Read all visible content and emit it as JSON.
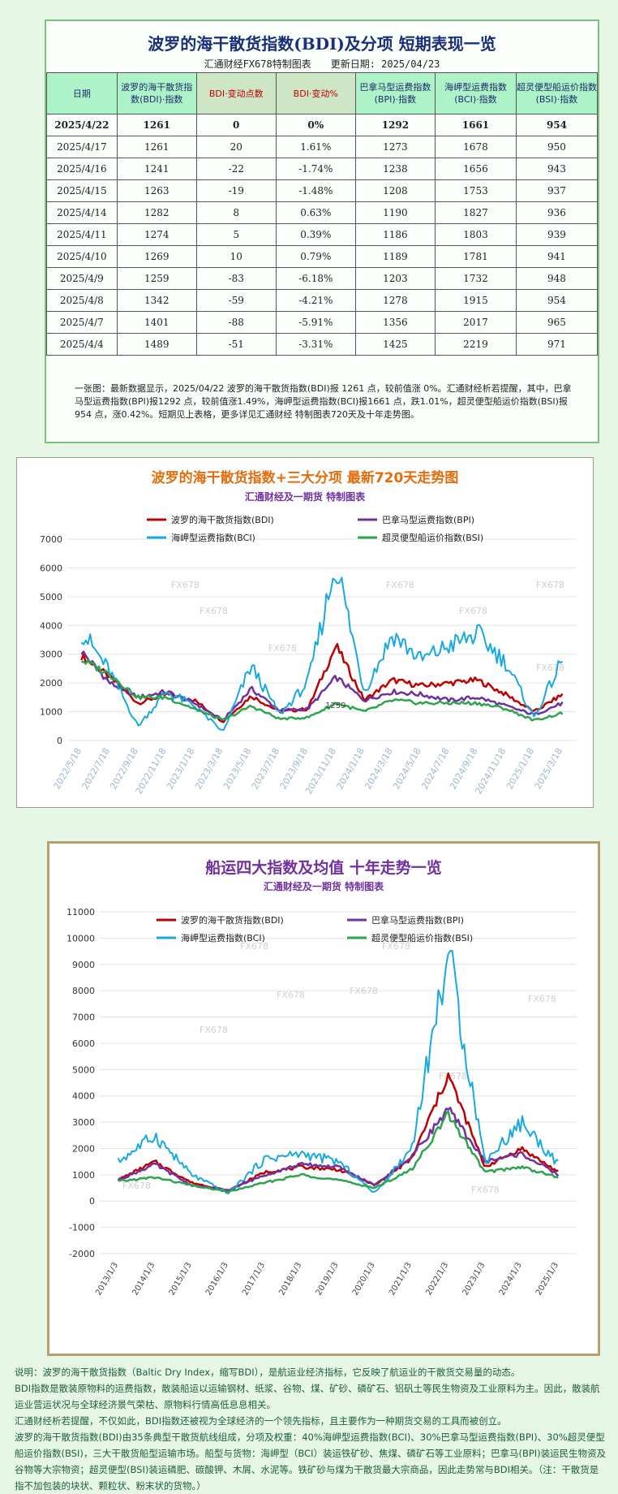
{
  "table_section": {
    "title": "波罗的海干散货指数(BDI)及分项 短期表现一览",
    "subtitle": "汇通财经FX678特制图表　　更新日期: 2025/04/23",
    "headers": [
      "日期",
      "波罗的海干散货指数(BDI)·指数",
      "BDI·变动点数",
      "BDI·变动%",
      "巴拿马型运费指数(BPI)·指数",
      "海岬型运费指数(BCI)·指数",
      "超灵便型船运价指数(BSI)·指数"
    ],
    "rows": [
      [
        "2025/4/22",
        "1261",
        "0",
        "0%",
        "1292",
        "1661",
        "954"
      ],
      [
        "2025/4/17",
        "1261",
        "20",
        "1.61%",
        "1273",
        "1678",
        "950"
      ],
      [
        "2025/4/16",
        "1241",
        "-22",
        "-1.74%",
        "1238",
        "1656",
        "943"
      ],
      [
        "2025/4/15",
        "1263",
        "-19",
        "-1.48%",
        "1208",
        "1753",
        "937"
      ],
      [
        "2025/4/14",
        "1282",
        "8",
        "0.63%",
        "1190",
        "1827",
        "936"
      ],
      [
        "2025/4/11",
        "1274",
        "5",
        "0.39%",
        "1186",
        "1803",
        "939"
      ],
      [
        "2025/4/10",
        "1269",
        "10",
        "0.79%",
        "1189",
        "1781",
        "941"
      ],
      [
        "2025/4/9",
        "1259",
        "-83",
        "-6.18%",
        "1203",
        "1732",
        "948"
      ],
      [
        "2025/4/8",
        "1342",
        "-59",
        "-4.21%",
        "1278",
        "1915",
        "954"
      ],
      [
        "2025/4/7",
        "1401",
        "-88",
        "-5.91%",
        "1356",
        "2017",
        "965"
      ],
      [
        "2025/4/4",
        "1489",
        "-51",
        "-3.31%",
        "1425",
        "2219",
        "971"
      ]
    ],
    "note": "一张图：最新数据显示，2025/04/22 波罗的海干散货指数(BDI)报 1261 点，较前值涨 0%。汇通财经析若提醒，其中，巴拿马型运费指数(BPI)报1292 点，较前值涨1.49%，海岬型运费指数(BCI)报1661 点，跌1.01%，超灵便型船运价指数(BSI)报954 点，涨0.42%。短期见上表格，更多详见汇通财经 特制图表720天及十年走势图。"
  },
  "chart_data": [
    {
      "type": "line",
      "title": "波罗的海干散货指数+三大分项 最新720天走势图",
      "subtitle": "汇通财经及一期货 特制图表",
      "ylim": [
        0,
        7000
      ],
      "yticks": [
        0,
        1000,
        2000,
        3000,
        4000,
        5000,
        6000,
        7000
      ],
      "x": [
        "2022/5/18",
        "2022/7/18",
        "2022/9/18",
        "2022/11/18",
        "2023/1/18",
        "2023/3/18",
        "2023/5/18",
        "2023/7/18",
        "2023/9/18",
        "2023/11/18",
        "2024/1/18",
        "2024/3/18",
        "2024/5/18",
        "2024/7/18",
        "2024/9/18",
        "2024/11/18",
        "2025/1/18",
        "2025/3/18"
      ],
      "annotation": "1259",
      "watermark": "FX678",
      "grid": true,
      "legend": "top",
      "series": [
        {
          "name": "波罗的海干散货指数(BDI)",
          "color": "#c00000",
          "values": [
            2940,
            2200,
            1300,
            1600,
            1400,
            650,
            1550,
            1000,
            1100,
            3300,
            1400,
            2100,
            1900,
            2000,
            2100,
            1600,
            1000,
            1600
          ]
        },
        {
          "name": "巴拿马型运费指数(BPI)",
          "color": "#7030a0",
          "values": [
            3100,
            2000,
            1500,
            1700,
            1300,
            700,
            1800,
            1050,
            1100,
            2200,
            1400,
            1700,
            1600,
            1400,
            1500,
            1200,
            900,
            1300
          ]
        },
        {
          "name": "海岬型运费指数(BCI)",
          "color": "#16a9e3",
          "values": [
            3800,
            2400,
            500,
            1700,
            1200,
            300,
            2600,
            900,
            2000,
            6200,
            1700,
            3700,
            2800,
            3300,
            3700,
            2700,
            800,
            2800
          ]
        },
        {
          "name": "超灵便型船运价指数(BSI)",
          "color": "#2ea44f",
          "values": [
            2800,
            2300,
            1500,
            1500,
            1100,
            700,
            1200,
            750,
            800,
            1300,
            1000,
            1400,
            1300,
            1300,
            1300,
            1100,
            700,
            950
          ]
        }
      ]
    },
    {
      "type": "line",
      "title": "船运四大指数及均值 十年走势一览",
      "subtitle": "汇通财经及一期货 特制图表",
      "ylim": [
        -2000,
        11000
      ],
      "yticks": [
        -2000,
        -1000,
        0,
        1000,
        2000,
        3000,
        4000,
        5000,
        6000,
        7000,
        8000,
        9000,
        10000,
        11000
      ],
      "x": [
        "2013/1/3",
        "2014/1/3",
        "2015/1/3",
        "2016/1/3",
        "2017/1/3",
        "2018/1/3",
        "2019/1/3",
        "2020/1/3",
        "2021/1/3",
        "2022/1/3",
        "2023/1/3",
        "2024/1/3",
        "2025/1/3"
      ],
      "watermark": "FX678",
      "grid": true,
      "legend": "top",
      "series": [
        {
          "name": "波罗的海干散货指数(BDI)",
          "color": "#c00000",
          "values": [
            800,
            1500,
            700,
            400,
            1100,
            1300,
            1200,
            600,
            1600,
            4800,
            1300,
            2000,
            1100
          ]
        },
        {
          "name": "巴拿马型运费指数(BPI)",
          "color": "#7030a0",
          "values": [
            800,
            1400,
            600,
            400,
            1000,
            1400,
            1300,
            600,
            1700,
            3500,
            1500,
            1800,
            1000
          ]
        },
        {
          "name": "海岬型运费指数(BCI)",
          "color": "#16a9e3",
          "values": [
            1500,
            2500,
            1000,
            300,
            1600,
            1800,
            1500,
            300,
            2000,
            9500,
            1500,
            3000,
            1400
          ]
        },
        {
          "name": "超灵便型船运价指数(BSI)",
          "color": "#2ea44f",
          "values": [
            750,
            900,
            600,
            350,
            700,
            1000,
            800,
            500,
            1200,
            3300,
            1100,
            1300,
            900
          ]
        }
      ]
    }
  ],
  "description": [
    "说明：波罗的海干散货指数（Baltic Dry Index，缩写BDI），是航运业经济指标，它反映了航运业的干散货交易量的动态。",
    "BDI指数是散装原物料的运费指数，散装船运以运输钢材、纸浆、谷物、煤、矿砂、磷矿石、铝矾土等民生物资及工业原料为主。因此，散装航运业营运状况与全球经济景气荣枯、原物料行情高低息息相关。",
    "汇通财经析若提醒，不仅如此，BDI指数还被视为全球经济的一个领先指标，且主要作为一种期货交易的工具而被创立。",
    "波罗的海干散货指数(BDI)由35条典型干散货航线组成，分项及权重：40%海岬型运费指数(BCI)、30%巴拿马型运费指数(BPI)、30%超灵便型船运价指数(BSI)，三大干散货船型运输市场。船型与货物：海岬型（BCI）装运铁矿砂、焦煤、磷矿石等工业原料；巴拿马(BPI)装运民生物资及谷物等大宗物资；超灵便型(BSI)装运磷肥、碳酸钾、木屑、水泥等。铁矿砂与煤为干散货最大宗商品，因此走势常与BDI相关。（注：干散货是指不加包装的块状、颗粒状、粉末状的货物。）"
  ]
}
